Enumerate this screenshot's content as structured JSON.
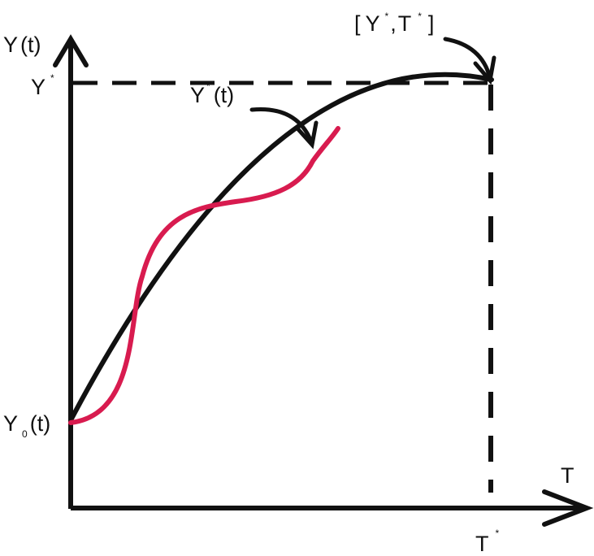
{
  "figure": {
    "y_axis_label": {
      "main": "Y",
      "arg": "(t)"
    },
    "x_axis_label": "T",
    "y_target_label": {
      "main": "Y",
      "sup": "*"
    },
    "y_start_label": {
      "main": "Y",
      "sub": "0",
      "arg": "(t)"
    },
    "t_target_label": {
      "main": "T",
      "sup": "*"
    },
    "optimal_curve_label": {
      "main": "Y",
      "sup": "*",
      "arg": "(t)"
    },
    "endpoint_label": {
      "open": "[",
      "y": "Y",
      "y_sup": "*",
      "sep": ",",
      "t": "T",
      "t_sup": "*",
      "close": "]"
    }
  },
  "colors": {
    "axes": "#111111",
    "optimal_curve": "#111111",
    "actual_curve": "#d81b4f",
    "guides": "#111111"
  }
}
